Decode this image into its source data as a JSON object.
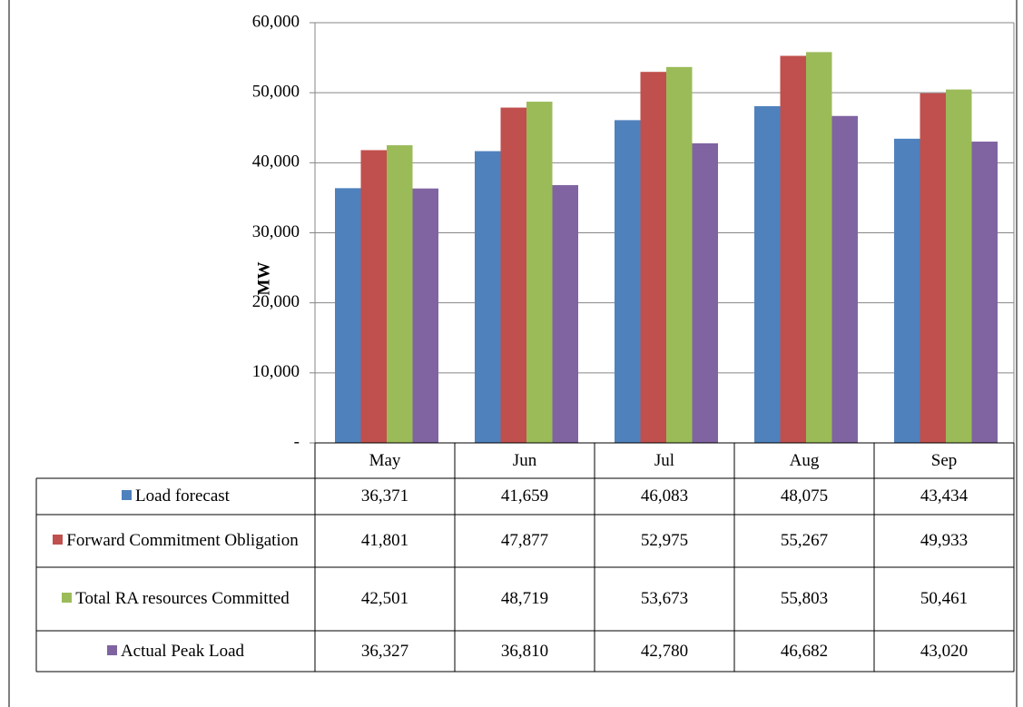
{
  "chart_data": {
    "type": "bar",
    "y_label": "MW",
    "categories": [
      "May",
      "Jun",
      "Jul",
      "Aug",
      "Sep"
    ],
    "series": [
      {
        "name": "Load forecast",
        "color": "#4f81bd",
        "values": [
          36371,
          41659,
          46083,
          48075,
          43434
        ],
        "value_labels": [
          "36,371",
          "41,659",
          "46,083",
          "48,075",
          "43,434"
        ]
      },
      {
        "name": "Forward Commitment Obligation",
        "color": "#c0504d",
        "values": [
          41801,
          47877,
          52975,
          55267,
          49933
        ],
        "value_labels": [
          "41,801",
          "47,877",
          "52,975",
          "55,267",
          "49,933"
        ]
      },
      {
        "name": "Total RA resources Committed",
        "color": "#9bbb59",
        "values": [
          42501,
          48719,
          53673,
          55803,
          50461
        ],
        "value_labels": [
          "42,501",
          "48,719",
          "53,673",
          "55,803",
          "50,461"
        ]
      },
      {
        "name": "Actual Peak Load",
        "color": "#8064a2",
        "values": [
          36327,
          36810,
          42780,
          46682,
          43020
        ],
        "value_labels": [
          "36,327",
          "36,810",
          "42,780",
          "46,682",
          "43,020"
        ]
      }
    ],
    "ylim": [
      0,
      60000
    ],
    "yticks": [
      {
        "value": 0,
        "label": "-"
      },
      {
        "value": 10000,
        "label": "10,000"
      },
      {
        "value": 20000,
        "label": "20,000"
      },
      {
        "value": 30000,
        "label": "30,000"
      },
      {
        "value": 40000,
        "label": "40,000"
      },
      {
        "value": 50000,
        "label": "50,000"
      },
      {
        "value": 60000,
        "label": "60,000"
      }
    ],
    "grid": true
  }
}
